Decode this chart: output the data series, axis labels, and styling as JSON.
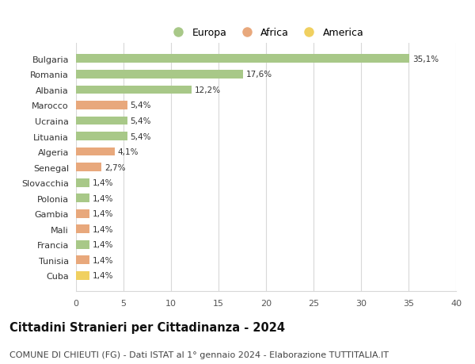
{
  "countries": [
    "Bulgaria",
    "Romania",
    "Albania",
    "Marocco",
    "Ucraina",
    "Lituania",
    "Algeria",
    "Senegal",
    "Slovacchia",
    "Polonia",
    "Gambia",
    "Mali",
    "Francia",
    "Tunisia",
    "Cuba"
  ],
  "values": [
    35.1,
    17.6,
    12.2,
    5.4,
    5.4,
    5.4,
    4.1,
    2.7,
    1.4,
    1.4,
    1.4,
    1.4,
    1.4,
    1.4,
    1.4
  ],
  "labels": [
    "35,1%",
    "17,6%",
    "12,2%",
    "5,4%",
    "5,4%",
    "5,4%",
    "4,1%",
    "2,7%",
    "1,4%",
    "1,4%",
    "1,4%",
    "1,4%",
    "1,4%",
    "1,4%",
    "1,4%"
  ],
  "continents": [
    "Europa",
    "Europa",
    "Europa",
    "Africa",
    "Europa",
    "Europa",
    "Africa",
    "Africa",
    "Europa",
    "Europa",
    "Africa",
    "Africa",
    "Europa",
    "Africa",
    "America"
  ],
  "colors": {
    "Europa": "#a8c888",
    "Africa": "#e8a87c",
    "America": "#f0d060"
  },
  "legend_labels": [
    "Europa",
    "Africa",
    "America"
  ],
  "legend_colors": [
    "#a8c888",
    "#e8a87c",
    "#f0d060"
  ],
  "title": "Cittadini Stranieri per Cittadinanza - 2024",
  "subtitle": "COMUNE DI CHIEUTI (FG) - Dati ISTAT al 1° gennaio 2024 - Elaborazione TUTTITALIA.IT",
  "xlim": [
    0,
    40
  ],
  "xticks": [
    0,
    5,
    10,
    15,
    20,
    25,
    30,
    35,
    40
  ],
  "background_color": "#ffffff",
  "grid_color": "#d8d8d8",
  "bar_height": 0.55,
  "title_fontsize": 10.5,
  "subtitle_fontsize": 8,
  "label_fontsize": 7.5,
  "tick_fontsize": 8,
  "legend_fontsize": 9
}
